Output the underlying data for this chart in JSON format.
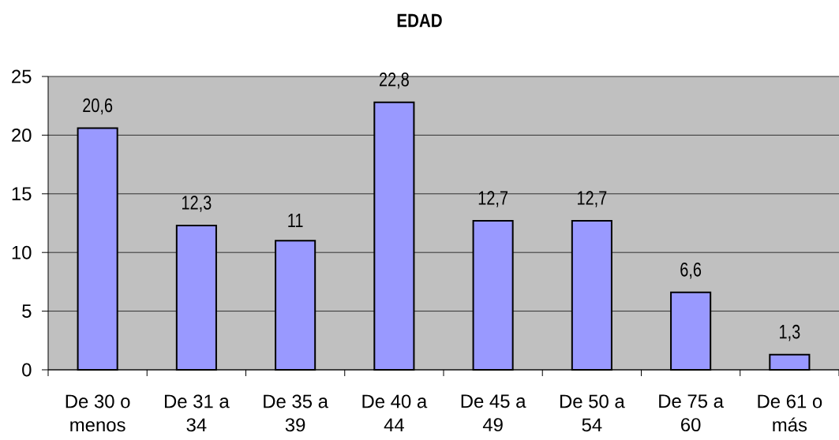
{
  "chart_data": {
    "type": "bar",
    "title": "EDAD",
    "categories": [
      "De 30 o menos",
      "De 31 a 34",
      "De 35 a 39",
      "De 40 a 44",
      "De 45 a 49",
      "De 50 a 54",
      "De 75 a 60",
      "De 61 o más"
    ],
    "values": [
      20.6,
      12.3,
      11,
      22.8,
      12.7,
      12.7,
      6.6,
      1.3
    ],
    "value_labels": [
      "20,6",
      "12,3",
      "11",
      "22,8",
      "12,7",
      "12,7",
      "6,6",
      "1,3"
    ],
    "color": "#9999ff",
    "ylim": [
      0,
      25
    ],
    "yticks": [
      0,
      5,
      10,
      15,
      20,
      25
    ],
    "grid": "y"
  }
}
